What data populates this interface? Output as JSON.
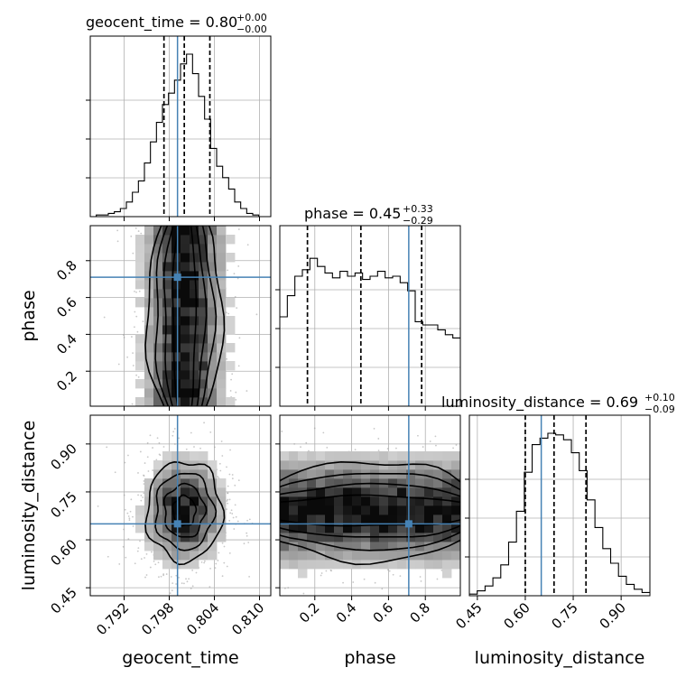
{
  "chart_data": {
    "type": "corner",
    "params": [
      "geocent_time",
      "phase",
      "luminosity_distance"
    ],
    "labels": {
      "geocent_time": "geocent_time",
      "phase": "phase",
      "luminosity_distance": "luminosity_distance"
    },
    "titles": [
      {
        "param": "geocent_time",
        "text": "geocent_time = 0.80",
        "sup": "+0.00",
        "sub": "−0.00"
      },
      {
        "param": "phase",
        "text": "phase = 0.45",
        "sup": "+0.33",
        "sub": "−0.29"
      },
      {
        "param": "luminosity_distance",
        "text": "luminosity_distance = 0.69",
        "sup": "+0.10",
        "sub": "−0.09"
      }
    ],
    "ranges": {
      "geocent_time": [
        0.7875,
        0.8115
      ],
      "phase": [
        0.01,
        0.99
      ],
      "luminosity_distance": [
        0.425,
        0.99
      ]
    },
    "ticks": {
      "geocent_time": [
        "0.792",
        "0.798",
        "0.804",
        "0.810"
      ],
      "phase": [
        "0.2",
        "0.4",
        "0.6",
        "0.8"
      ],
      "luminosity_distance": [
        "0.45",
        "0.60",
        "0.75",
        "0.90"
      ]
    },
    "truths": {
      "geocent_time": 0.7991,
      "phase": 0.71,
      "luminosity_distance": 0.65
    },
    "quantiles": {
      "geocent_time": [
        0.7973,
        0.8,
        0.8034
      ],
      "phase": [
        0.16,
        0.45,
        0.78
      ],
      "luminosity_distance": [
        0.6,
        0.69,
        0.79
      ]
    },
    "histograms": {
      "geocent_time": [
        0.0,
        0.01,
        0.01,
        0.02,
        0.03,
        0.05,
        0.09,
        0.15,
        0.22,
        0.33,
        0.46,
        0.58,
        0.69,
        0.76,
        0.84,
        0.94,
        1.0,
        0.88,
        0.74,
        0.6,
        0.42,
        0.31,
        0.24,
        0.17,
        0.09,
        0.05,
        0.02,
        0.01,
        0.0,
        0.0
      ],
      "phase": [
        0.55,
        0.68,
        0.8,
        0.84,
        0.91,
        0.86,
        0.82,
        0.79,
        0.83,
        0.8,
        0.82,
        0.78,
        0.8,
        0.83,
        0.79,
        0.8,
        0.76,
        0.71,
        0.52,
        0.5,
        0.5,
        0.47,
        0.44,
        0.42
      ],
      "luminosity_distance": [
        0.01,
        0.03,
        0.06,
        0.11,
        0.19,
        0.33,
        0.52,
        0.76,
        0.93,
        0.97,
        1.0,
        0.99,
        0.96,
        0.88,
        0.77,
        0.59,
        0.42,
        0.29,
        0.2,
        0.12,
        0.07,
        0.04,
        0.02
      ]
    },
    "grid": true
  }
}
